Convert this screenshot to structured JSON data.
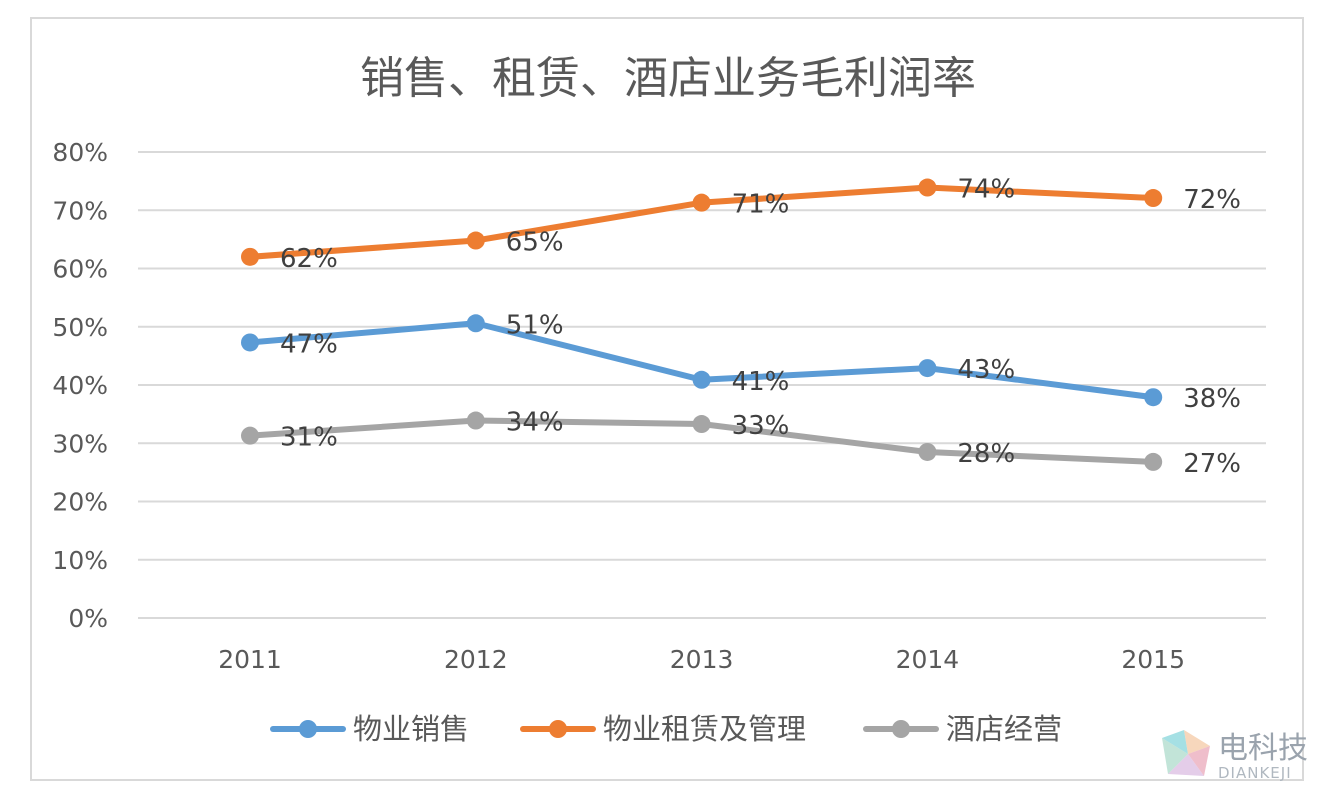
{
  "chart_data": {
    "type": "line",
    "title": "销售、租赁、酒店业务毛利润率",
    "categories": [
      "2011",
      "2012",
      "2013",
      "2014",
      "2015"
    ],
    "ylim": [
      0,
      80
    ],
    "yticks": [
      "0%",
      "10%",
      "20%",
      "30%",
      "40%",
      "50%",
      "60%",
      "70%",
      "80%"
    ],
    "ytick_values": [
      0,
      10,
      20,
      30,
      40,
      50,
      60,
      70,
      80
    ],
    "grid": true,
    "legend_position": "bottom",
    "series": [
      {
        "name": "物业销售",
        "color": "#5b9bd5",
        "values": [
          47.3,
          50.6,
          40.9,
          42.9,
          37.9
        ],
        "labels": [
          "47%",
          "51%",
          "41%",
          "43%",
          "38%"
        ]
      },
      {
        "name": "物业租赁及管理",
        "color": "#ed7d31",
        "values": [
          62.0,
          64.8,
          71.3,
          73.9,
          72.1
        ],
        "labels": [
          "62%",
          "65%",
          "71%",
          "74%",
          "72%"
        ]
      },
      {
        "name": "酒店经营",
        "color": "#a5a5a5",
        "values": [
          31.3,
          33.9,
          33.3,
          28.5,
          26.8
        ],
        "labels": [
          "31%",
          "34%",
          "33%",
          "28%",
          "27%"
        ]
      }
    ]
  },
  "watermark": {
    "cn": "电科技",
    "en": "DIANKEJI"
  }
}
